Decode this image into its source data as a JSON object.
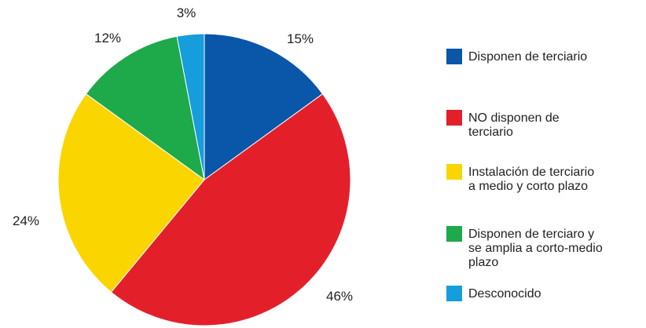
{
  "chart_data": {
    "type": "pie",
    "title": "",
    "legend_position": "right",
    "start_angle_deg": 0,
    "direction": "clockwise",
    "slices": [
      {
        "label": "Disponen de terciario",
        "value": 15,
        "value_label": "15%",
        "color": "#0a56a8"
      },
      {
        "label": "NO disponen de terciario",
        "value": 46,
        "value_label": "46%",
        "color": "#e3202a"
      },
      {
        "label": "Instalación de terciario a medio y corto plazo",
        "value": 24,
        "value_label": "24%",
        "color": "#fbd500"
      },
      {
        "label": "Disponen de terciaro y se amplia a corto-medio plazo",
        "value": 12,
        "value_label": "12%",
        "color": "#1ea94b"
      },
      {
        "label": "Desconocido",
        "value": 3,
        "value_label": "3%",
        "color": "#159ddc"
      }
    ]
  }
}
